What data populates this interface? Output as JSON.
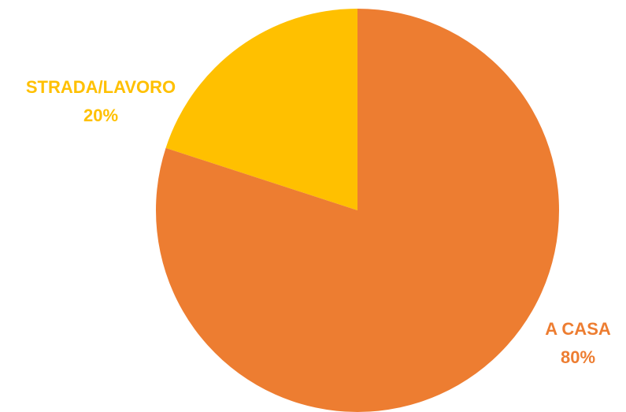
{
  "chart_data": {
    "type": "pie",
    "slices": [
      {
        "name": "STRADA/LAVORO",
        "value": 20,
        "label_value": "20%",
        "color": "#FFC000"
      },
      {
        "name": "A CASA",
        "value": 80,
        "label_value": "80%",
        "color": "#ED7D31"
      }
    ],
    "start_angle_deg": 0,
    "direction": "counterclockwise-from-top-for-first-slice"
  }
}
